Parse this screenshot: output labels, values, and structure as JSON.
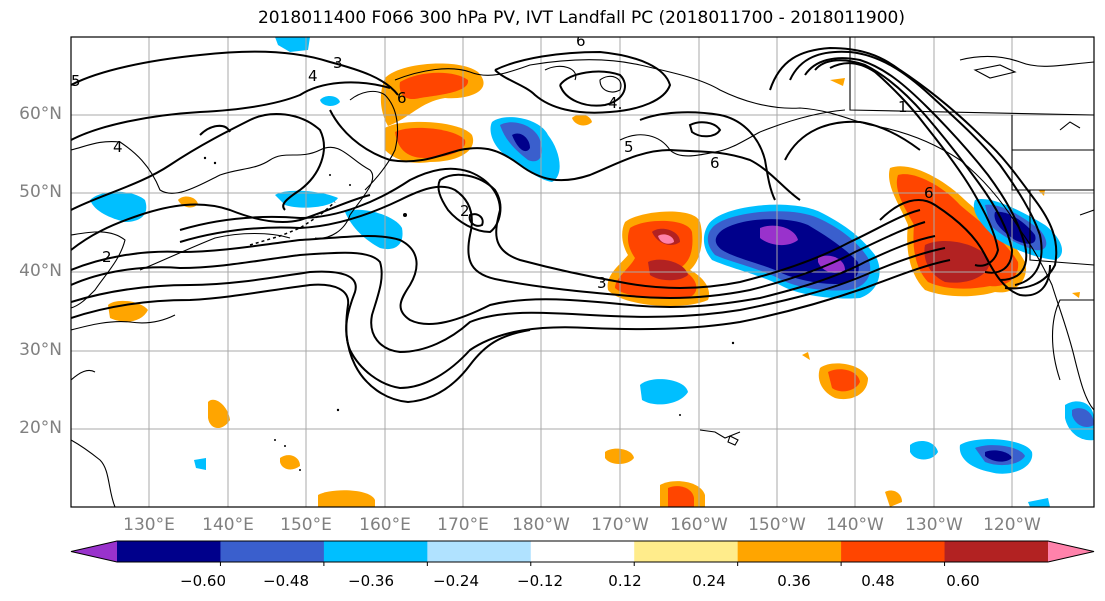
{
  "title": "2018011400 F066 300 hPa PV, IVT Landfall PC (2018011700 - 2018011900)",
  "lat_labels": [
    "60°N",
    "50°N",
    "40°N",
    "30°N",
    "20°N"
  ],
  "lon_labels": [
    "130°E",
    "140°E",
    "150°E",
    "160°E",
    "170°E",
    "180°W",
    "170°W",
    "160°W",
    "150°W",
    "140°W",
    "130°W",
    "120°W"
  ],
  "colorbar": {
    "ticks": [
      "−0.60",
      "−0.48",
      "−0.36",
      "−0.24",
      "−0.12",
      "0.12",
      "0.24",
      "0.36",
      "0.48",
      "0.60"
    ],
    "colors": [
      "#9932cc",
      "#00008b",
      "#3a5fcd",
      "#00bfff",
      "#b0e2ff",
      "#ffffff",
      "#ffec8b",
      "#ffa500",
      "#ff4500",
      "#b22222",
      "#ff82ab"
    ]
  },
  "contour_labels": [
    "6",
    "3",
    "4",
    "5",
    "4",
    "6",
    "4",
    "5",
    "6",
    "1",
    "6",
    "2",
    "2",
    "3"
  ]
}
